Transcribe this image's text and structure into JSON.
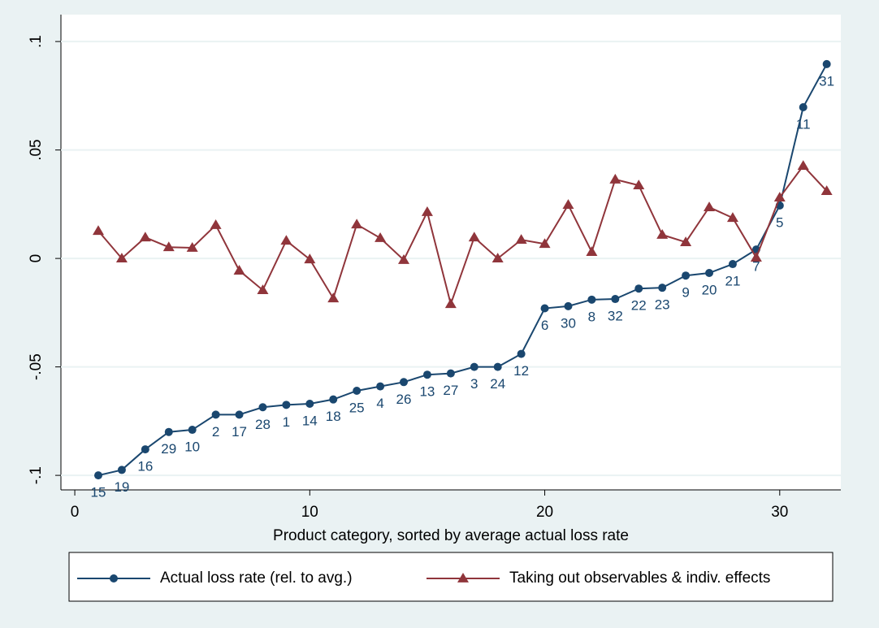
{
  "chart_data": {
    "type": "line",
    "x": [
      1,
      2,
      3,
      4,
      5,
      6,
      7,
      8,
      9,
      10,
      11,
      12,
      13,
      14,
      15,
      16,
      17,
      18,
      19,
      20,
      21,
      22,
      23,
      24,
      25,
      26,
      27,
      28,
      29,
      30,
      31,
      32
    ],
    "xlabel": "Product category, sorted by average actual loss rate",
    "xlim": [
      -0.59,
      32.6
    ],
    "xticks": [
      0,
      10,
      20,
      30
    ],
    "ylim": [
      -0.1067,
      0.1124
    ],
    "yticks": [
      {
        "value": -0.1,
        "label": "-.1"
      },
      {
        "value": -0.05,
        "label": "-.05"
      },
      0,
      {
        "value": 0.05,
        "label": ".05"
      },
      {
        "value": 0.1,
        "label": ".1"
      }
    ],
    "grid": true,
    "series": [
      {
        "name": "Actual loss rate (rel. to avg.)",
        "color": "#1a476f",
        "marker": "circle",
        "values": [
          -0.1,
          -0.0975,
          -0.088,
          -0.08,
          -0.079,
          -0.072,
          -0.072,
          -0.0686,
          -0.0675,
          -0.067,
          -0.065,
          -0.061,
          -0.059,
          -0.057,
          -0.0536,
          -0.053,
          -0.05,
          -0.05,
          -0.044,
          -0.023,
          -0.022,
          -0.019,
          -0.0187,
          -0.0139,
          -0.0135,
          -0.0079,
          -0.0067,
          -0.0026,
          0.0041,
          0.0244,
          0.0697,
          0.0896
        ],
        "point_labels": [
          "15",
          "19",
          "16",
          "29",
          "10",
          "2",
          "17",
          "28",
          "1",
          "14",
          "18",
          "25",
          "4",
          "26",
          "13",
          "27",
          "3",
          "24",
          "12",
          "6",
          "30",
          "8",
          "32",
          "22",
          "23",
          "9",
          "20",
          "21",
          "7",
          "5",
          "11",
          "31"
        ]
      },
      {
        "name": "Taking out observables & indiv. effects",
        "color": "#90353b",
        "marker": "triangle",
        "values": [
          0.0127,
          0,
          0.0097,
          0.0052,
          0.0049,
          0.0154,
          -0.0056,
          -0.0146,
          0.0082,
          -0.0004,
          -0.0184,
          0.0157,
          0.0094,
          -0.0007,
          0.0214,
          -0.021,
          0.0097,
          0,
          0.0086,
          0.0067,
          0.0247,
          0.003,
          0.0364,
          0.0337,
          0.0109,
          0.0075,
          0.0236,
          0.0187,
          0.0004,
          0.0281,
          0.0427,
          0.0311
        ]
      }
    ]
  }
}
